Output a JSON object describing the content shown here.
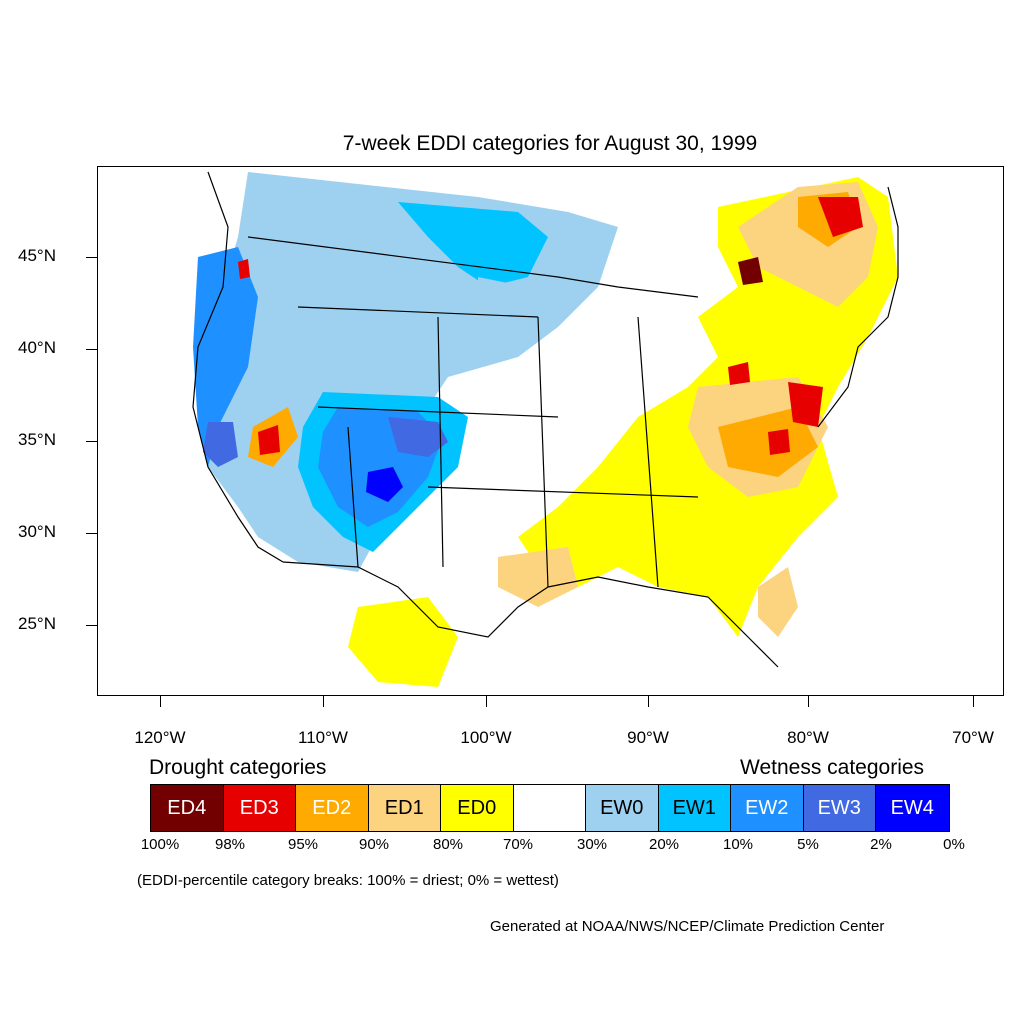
{
  "title": "7-week EDDI categories for August 30, 1999",
  "map": {
    "lat_labels": [
      "45°N",
      "40°N",
      "35°N",
      "30°N",
      "25°N"
    ],
    "lon_labels": [
      "120°W",
      "110°W",
      "100°W",
      "90°W",
      "80°W",
      "70°W"
    ]
  },
  "legend": {
    "drought_heading": "Drought categories",
    "wetness_heading": "Wetness categories",
    "categories": [
      {
        "label": "ED4",
        "color": "#730000",
        "text_color": "#ffffff"
      },
      {
        "label": "ED3",
        "color": "#e60000",
        "text_color": "#ffffff"
      },
      {
        "label": "ED2",
        "color": "#ffaa00",
        "text_color": "#ffffff"
      },
      {
        "label": "ED1",
        "color": "#fcd37f",
        "text_color": "#000000"
      },
      {
        "label": "ED0",
        "color": "#ffff00",
        "text_color": "#000000"
      },
      {
        "label": "",
        "color": "#ffffff",
        "text_color": "#000000"
      },
      {
        "label": "EW0",
        "color": "#9ed1f0",
        "text_color": "#000000"
      },
      {
        "label": "EW1",
        "color": "#00c3ff",
        "text_color": "#000000"
      },
      {
        "label": "EW2",
        "color": "#1e90ff",
        "text_color": "#ffffff"
      },
      {
        "label": "EW3",
        "color": "#4169e1",
        "text_color": "#ffffff"
      },
      {
        "label": "EW4",
        "color": "#0000ff",
        "text_color": "#ffffff"
      }
    ],
    "breaks": [
      "100%",
      "98%",
      "95%",
      "90%",
      "80%",
      "70%",
      "30%",
      "20%",
      "10%",
      "5%",
      "2%",
      "0%"
    ]
  },
  "note": "(EDDI-percentile category breaks: 100% = driest; 0% = wettest)",
  "credit": "Generated at NOAA/NWS/NCEP/Climate Prediction Center"
}
